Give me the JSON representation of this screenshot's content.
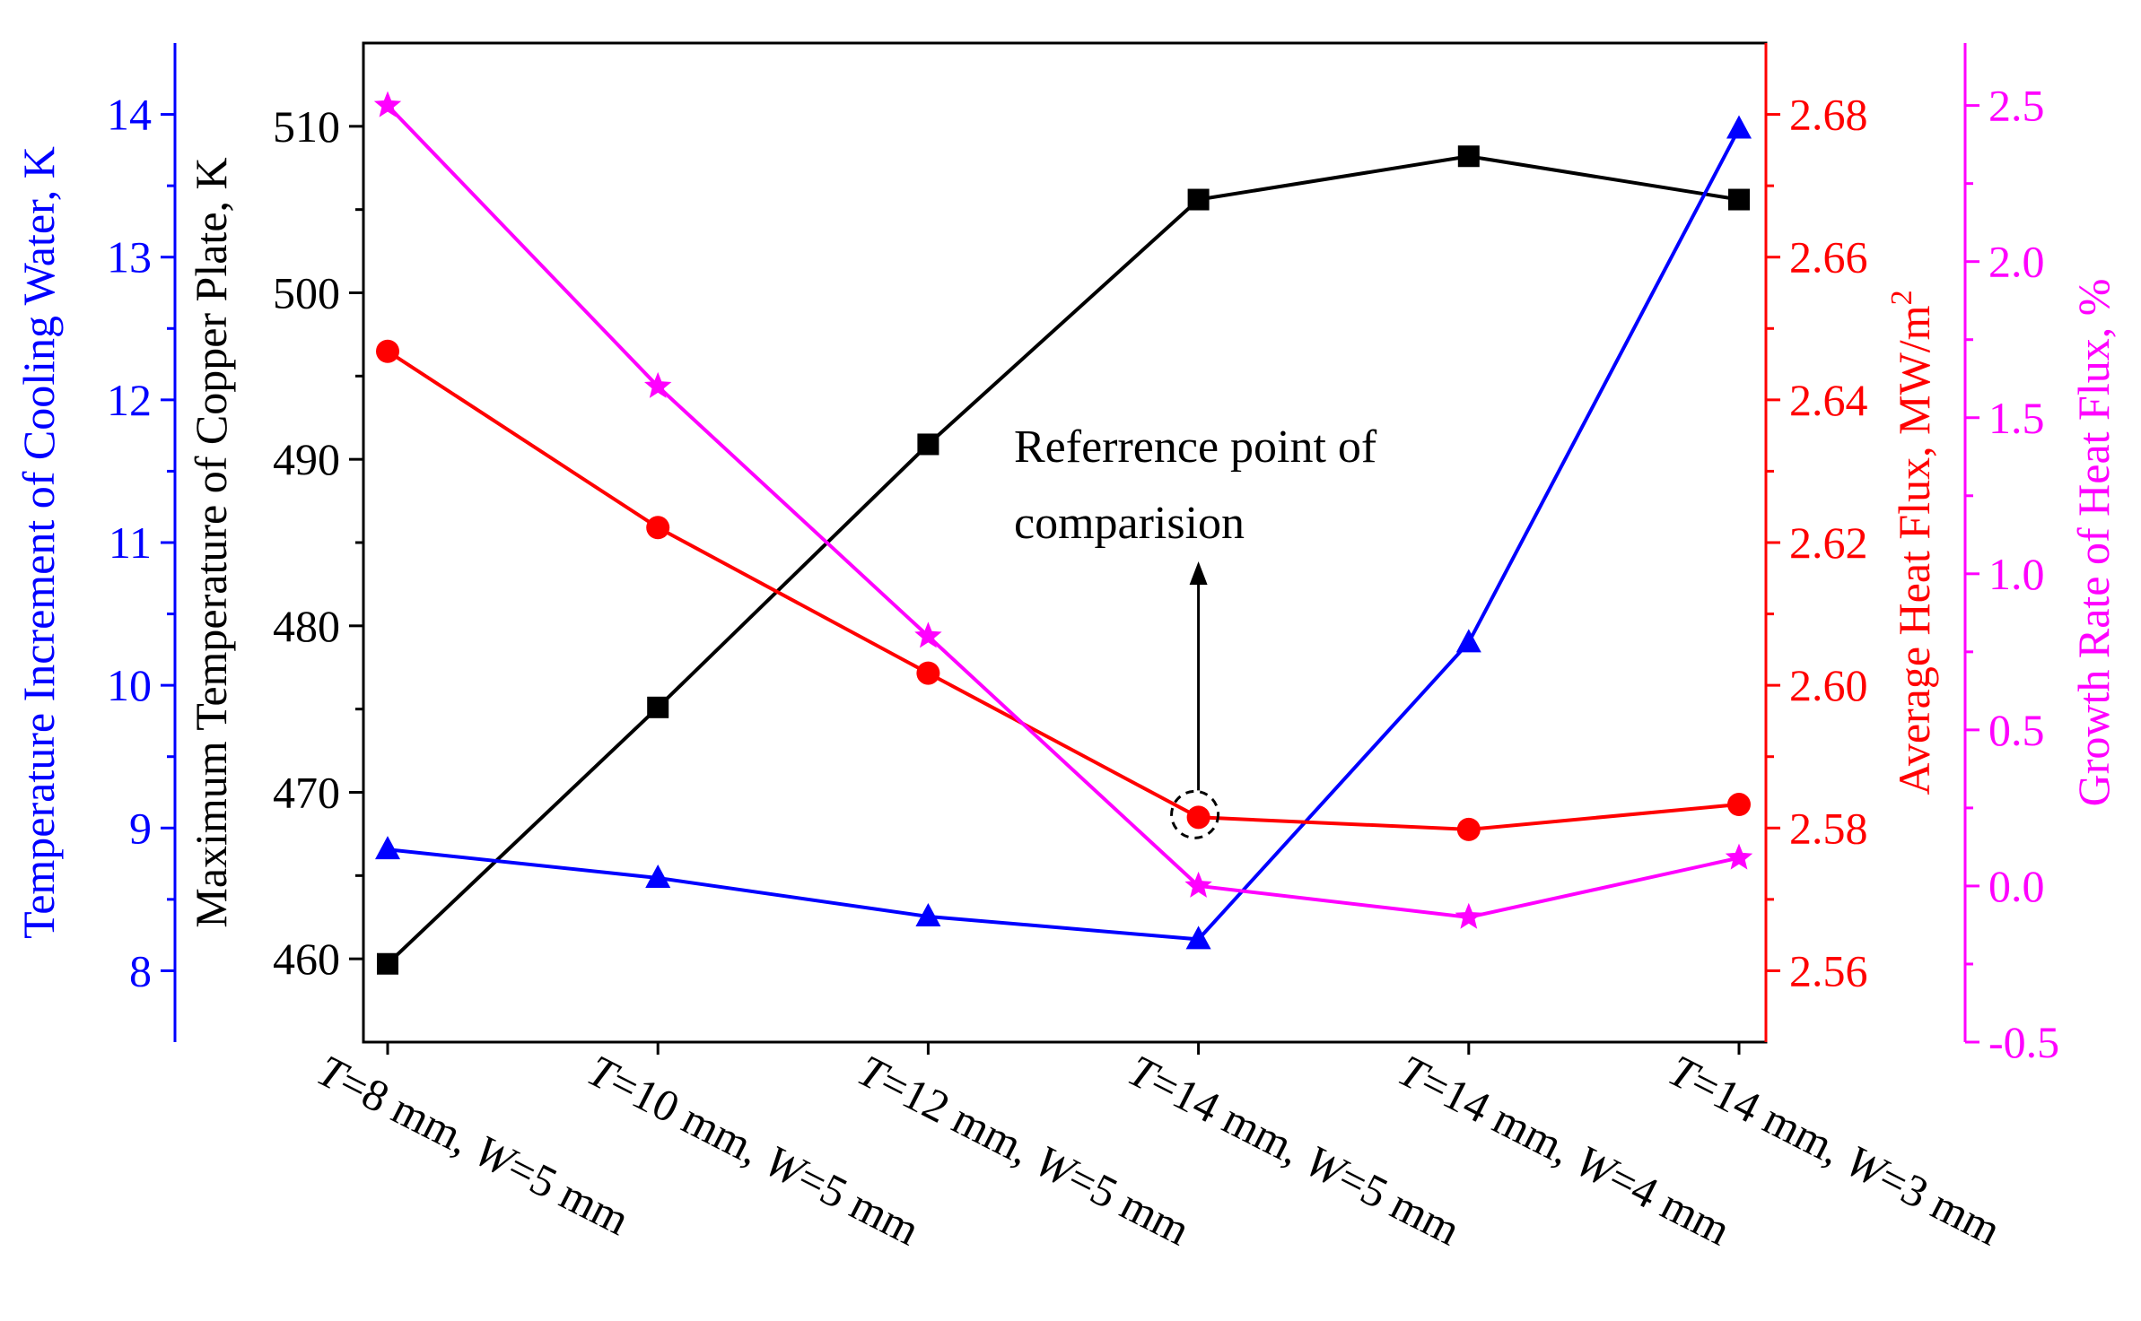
{
  "chart_data": {
    "type": "line",
    "categories": [
      {
        "part1": "T",
        "part2": "=8 mm, ",
        "part3": "W",
        "part4": "=5 mm"
      },
      {
        "part1": "T",
        "part2": "=10 mm, ",
        "part3": "W",
        "part4": "=5 mm"
      },
      {
        "part1": "T",
        "part2": "=12 mm, ",
        "part3": "W",
        "part4": "=5 mm"
      },
      {
        "part1": "T",
        "part2": "=14 mm, ",
        "part3": "W",
        "part4": "=5 mm"
      },
      {
        "part1": "T",
        "part2": "=14 mm, ",
        "part3": "W",
        "part4": "=4 mm"
      },
      {
        "part1": "T",
        "part2": "=14 mm, ",
        "part3": "W",
        "part4": "=3 mm"
      }
    ],
    "axes": {
      "blue": {
        "label": "Temperature Increment of Cooling Water, K",
        "color": "#0000ff",
        "range": [
          7.5,
          14.5
        ],
        "ticks": [
          "8",
          "9",
          "10",
          "11",
          "12",
          "13",
          "14"
        ],
        "tick_values": [
          8,
          9,
          10,
          11,
          12,
          13,
          14
        ]
      },
      "black": {
        "label": "Maximum Temperature of Copper Plate, K",
        "color": "#000000",
        "range": [
          455,
          515
        ],
        "ticks": [
          "460",
          "470",
          "480",
          "490",
          "500",
          "510"
        ],
        "tick_values": [
          460,
          470,
          480,
          490,
          500,
          510
        ]
      },
      "red": {
        "label": "Average Heat Flux, MW/m",
        "label_sup": "2",
        "color": "#ff0000",
        "range": [
          2.55,
          2.69
        ],
        "ticks": [
          "2.56",
          "2.58",
          "2.60",
          "2.62",
          "2.64",
          "2.66",
          "2.68"
        ],
        "tick_values": [
          2.56,
          2.58,
          2.6,
          2.62,
          2.64,
          2.66,
          2.68
        ]
      },
      "magenta": {
        "label": "Growth Rate of Heat Flux, %",
        "color": "#ff00ff",
        "range": [
          -0.5,
          2.7
        ],
        "ticks": [
          "-0.5",
          "0.0",
          "0.5",
          "1.0",
          "1.5",
          "2.0",
          "2.5"
        ],
        "tick_values": [
          -0.5,
          0.0,
          0.5,
          1.0,
          1.5,
          2.0,
          2.5
        ]
      }
    },
    "series": [
      {
        "name": "Maximum Temperature of Copper Plate",
        "axis": "black",
        "marker": "square",
        "values": [
          459.7,
          475.1,
          490.9,
          505.6,
          508.2,
          505.6
        ]
      },
      {
        "name": "Temperature Increment of Cooling Water",
        "axis": "blue",
        "marker": "triangle",
        "values": [
          8.85,
          8.65,
          8.38,
          8.22,
          10.3,
          13.9
        ]
      },
      {
        "name": "Average Heat Flux",
        "axis": "red",
        "marker": "circle",
        "values": [
          2.6468,
          2.6221,
          2.6017,
          2.5815,
          2.5798,
          2.5833
        ]
      },
      {
        "name": "Growth Rate of Heat Flux",
        "axis": "magenta",
        "marker": "star",
        "values": [
          2.5,
          1.6,
          0.8,
          0.0,
          -0.1,
          0.09
        ]
      }
    ],
    "annotation": {
      "lines": [
        "Referrence point of",
        "comparision"
      ],
      "target_category": 3,
      "target_series": "Average Heat Flux"
    }
  }
}
